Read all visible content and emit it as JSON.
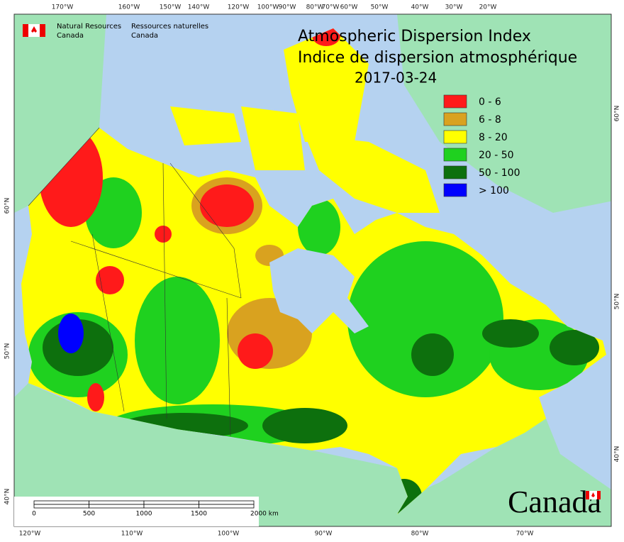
{
  "agency": {
    "en_line1": "Natural Resources",
    "en_line2": "Canada",
    "fr_line1": "Ressources naturelles",
    "fr_line2": "Canada"
  },
  "title": {
    "line1": "Atmospheric Dispersion Index",
    "line2": "Indice de dispersion atmosphérique",
    "date": "2017-03-24"
  },
  "legend": [
    {
      "label": "0 - 6",
      "color": "#ff1a1a"
    },
    {
      "label": "6 - 8",
      "color": "#d9a21f"
    },
    {
      "label": "8 - 20",
      "color": "#ffff00"
    },
    {
      "label": "20 - 50",
      "color": "#1fd11f"
    },
    {
      "label": "50 - 100",
      "color": "#0d700d"
    },
    {
      "label": "> 100",
      "color": "#0000ff"
    }
  ],
  "graticule": {
    "top": [
      "170°W",
      "160°W",
      "150°W",
      "140°W",
      "120°W",
      "100°W",
      "90°W",
      "80°W",
      "70°W",
      "60°W",
      "50°W",
      "40°W",
      "30°W",
      "20°W"
    ],
    "bottom": [
      "120°W",
      "110°W",
      "100°W",
      "90°W",
      "80°W",
      "70°W"
    ],
    "left": [
      "60°N",
      "50°N",
      "40°N"
    ],
    "right": [
      "60°N",
      "50°N",
      "40°N"
    ]
  },
  "scale_bar": {
    "labels": [
      "0",
      "500",
      "1000",
      "1500",
      "2000 km"
    ]
  },
  "wordmark": "Canada"
}
